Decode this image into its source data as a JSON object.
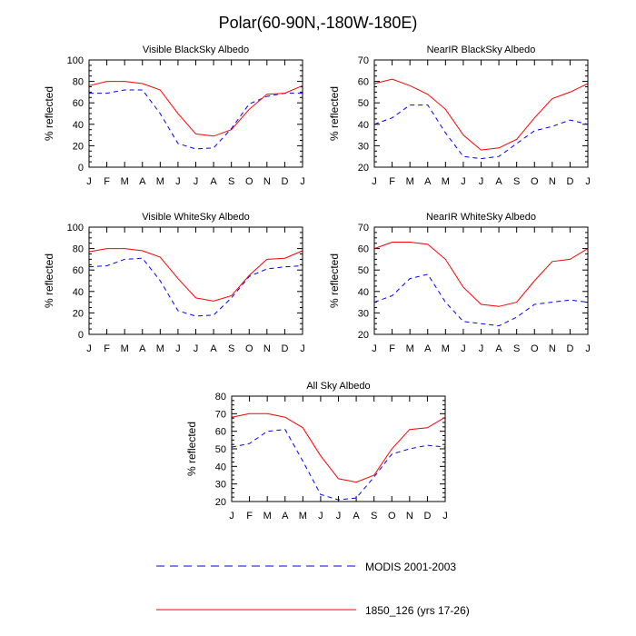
{
  "figure_title": "Polar(60-90N,-180W-180E)",
  "legend": {
    "entries": [
      {
        "label": "MODIS 2001-2003",
        "color": "#0000ff",
        "style": "dashed"
      },
      {
        "label": "1850_126 (yrs 17-26)",
        "color": "#ff0000",
        "style": "solid"
      }
    ]
  },
  "chart_data": [
    {
      "type": "line",
      "title": "Visible BlackSky Albedo",
      "xlabel": "",
      "ylabel": "% reflected",
      "categories": [
        "J",
        "F",
        "M",
        "A",
        "M",
        "J",
        "J",
        "A",
        "S",
        "O",
        "N",
        "D",
        "J"
      ],
      "ylim": [
        0,
        100
      ],
      "yticks": [
        0,
        20,
        40,
        60,
        80,
        100
      ],
      "series": [
        {
          "name": "MODIS 2001-2003",
          "color": "#0000ff",
          "dash": true,
          "values": [
            69,
            69,
            72,
            72,
            50,
            22,
            17,
            18,
            36,
            59,
            66,
            69,
            69
          ]
        },
        {
          "name": "1850_126 (yrs 17-26)",
          "color": "#ff0000",
          "dash": false,
          "values": [
            76,
            80,
            80,
            78,
            72,
            50,
            31,
            29,
            35,
            54,
            68,
            69,
            76
          ]
        }
      ]
    },
    {
      "type": "line",
      "title": "NearIR BlackSky Albedo",
      "xlabel": "",
      "ylabel": "% reflected",
      "categories": [
        "J",
        "F",
        "M",
        "A",
        "M",
        "J",
        "J",
        "A",
        "S",
        "O",
        "N",
        "D",
        "J"
      ],
      "ylim": [
        20,
        70
      ],
      "yticks": [
        20,
        30,
        40,
        50,
        60,
        70
      ],
      "series": [
        {
          "name": "MODIS 2001-2003",
          "color": "#0000ff",
          "dash": true,
          "values": [
            40,
            43,
            49,
            49,
            36,
            25,
            24,
            25,
            31,
            37,
            39,
            42,
            40
          ]
        },
        {
          "name": "1850_126 (yrs 17-26)",
          "color": "#ff0000",
          "dash": false,
          "values": [
            59,
            61,
            58,
            54,
            47,
            35,
            28,
            29,
            33,
            43,
            52,
            55,
            59
          ]
        }
      ]
    },
    {
      "type": "line",
      "title": "Visible WhiteSky Albedo",
      "xlabel": "",
      "ylabel": "% reflected",
      "categories": [
        "J",
        "F",
        "M",
        "A",
        "M",
        "J",
        "J",
        "A",
        "S",
        "O",
        "N",
        "D",
        "J"
      ],
      "ylim": [
        0,
        100
      ],
      "yticks": [
        0,
        20,
        40,
        60,
        80,
        100
      ],
      "series": [
        {
          "name": "MODIS 2001-2003",
          "color": "#0000ff",
          "dash": true,
          "values": [
            63,
            64,
            70,
            71,
            50,
            22,
            17,
            18,
            34,
            54,
            61,
            63,
            64
          ]
        },
        {
          "name": "1850_126 (yrs 17-26)",
          "color": "#ff0000",
          "dash": false,
          "values": [
            77,
            80,
            80,
            78,
            72,
            52,
            34,
            31,
            36,
            55,
            70,
            71,
            78
          ]
        }
      ]
    },
    {
      "type": "line",
      "title": "NearIR WhiteSky Albedo",
      "xlabel": "",
      "ylabel": "% reflected",
      "categories": [
        "J",
        "F",
        "M",
        "A",
        "M",
        "J",
        "J",
        "A",
        "S",
        "O",
        "N",
        "D",
        "J"
      ],
      "ylim": [
        20,
        70
      ],
      "yticks": [
        20,
        30,
        40,
        50,
        60,
        70
      ],
      "series": [
        {
          "name": "MODIS 2001-2003",
          "color": "#0000ff",
          "dash": true,
          "values": [
            35,
            38,
            46,
            48,
            35,
            26,
            25,
            24,
            28,
            34,
            35,
            36,
            35
          ]
        },
        {
          "name": "1850_126 (yrs 17-26)",
          "color": "#ff0000",
          "dash": false,
          "values": [
            60,
            63,
            63,
            62,
            55,
            42,
            34,
            33,
            35,
            45,
            54,
            55,
            60
          ]
        }
      ]
    },
    {
      "type": "line",
      "title": "All Sky Albedo",
      "xlabel": "",
      "ylabel": "% reflected",
      "categories": [
        "J",
        "F",
        "M",
        "A",
        "M",
        "J",
        "J",
        "A",
        "S",
        "O",
        "N",
        "D",
        "J"
      ],
      "ylim": [
        20,
        80
      ],
      "yticks": [
        20,
        30,
        40,
        50,
        60,
        70,
        80
      ],
      "series": [
        {
          "name": "MODIS 2001-2003",
          "color": "#0000ff",
          "dash": true,
          "values": [
            51,
            53,
            60,
            61,
            43,
            24,
            21,
            22,
            34,
            47,
            50,
            52,
            51
          ]
        },
        {
          "name": "1850_126 (yrs 17-26)",
          "color": "#ff0000",
          "dash": false,
          "values": [
            68,
            70,
            70,
            68,
            62,
            46,
            33,
            31,
            35,
            50,
            61,
            62,
            68
          ]
        }
      ]
    }
  ]
}
